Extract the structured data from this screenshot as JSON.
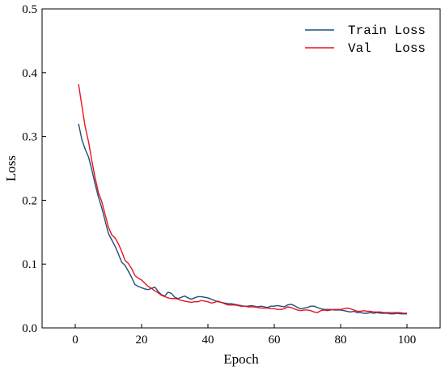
{
  "chart_data": {
    "type": "line",
    "xlabel": "Epoch",
    "ylabel": "Loss",
    "xlim": [
      -10,
      110
    ],
    "ylim": [
      0,
      0.5
    ],
    "xticks": [
      "0",
      "20",
      "40",
      "60",
      "80",
      "100"
    ],
    "yticks": [
      "0.0",
      "0.1",
      "0.2",
      "0.3",
      "0.4",
      "0.5"
    ],
    "grid": false,
    "legend_position": "top-right",
    "series": [
      {
        "name": "Train Loss",
        "color": "#1f4e79",
        "x": [
          1,
          2,
          3,
          4,
          5,
          6,
          7,
          8,
          9,
          10,
          11,
          12,
          13,
          14,
          15,
          16,
          17,
          18,
          19,
          20,
          21,
          22,
          23,
          24,
          25,
          26,
          27,
          28,
          29,
          30,
          31,
          32,
          33,
          34,
          35,
          36,
          37,
          38,
          39,
          40,
          41,
          42,
          43,
          44,
          45,
          46,
          47,
          48,
          49,
          50,
          51,
          52,
          53,
          54,
          55,
          56,
          57,
          58,
          59,
          60,
          61,
          62,
          63,
          64,
          65,
          66,
          67,
          68,
          69,
          70,
          71,
          72,
          73,
          74,
          75,
          76,
          77,
          78,
          79,
          80,
          81,
          82,
          83,
          84,
          85,
          86,
          87,
          88,
          89,
          90,
          91,
          92,
          93,
          94,
          95,
          96,
          97,
          98,
          99,
          100
        ],
        "y": [
          0.32,
          0.295,
          0.28,
          0.268,
          0.248,
          0.225,
          0.205,
          0.188,
          0.168,
          0.148,
          0.138,
          0.128,
          0.116,
          0.103,
          0.098,
          0.089,
          0.079,
          0.068,
          0.065,
          0.063,
          0.061,
          0.06,
          0.062,
          0.064,
          0.057,
          0.052,
          0.05,
          0.056,
          0.054,
          0.048,
          0.046,
          0.048,
          0.05,
          0.047,
          0.045,
          0.047,
          0.049,
          0.049,
          0.048,
          0.047,
          0.045,
          0.043,
          0.041,
          0.04,
          0.039,
          0.038,
          0.038,
          0.037,
          0.036,
          0.035,
          0.034,
          0.034,
          0.035,
          0.034,
          0.033,
          0.034,
          0.033,
          0.032,
          0.034,
          0.034,
          0.035,
          0.034,
          0.033,
          0.036,
          0.037,
          0.035,
          0.032,
          0.03,
          0.031,
          0.032,
          0.034,
          0.034,
          0.032,
          0.03,
          0.029,
          0.029,
          0.029,
          0.028,
          0.028,
          0.028,
          0.027,
          0.026,
          0.025,
          0.026,
          0.024,
          0.024,
          0.023,
          0.023,
          0.024,
          0.023,
          0.024,
          0.023,
          0.023,
          0.023,
          0.022,
          0.022,
          0.023,
          0.022,
          0.022,
          0.022
        ]
      },
      {
        "name": "Val   Loss",
        "color": "#e8141e",
        "x": [
          1,
          2,
          3,
          4,
          5,
          6,
          7,
          8,
          9,
          10,
          11,
          12,
          13,
          14,
          15,
          16,
          17,
          18,
          19,
          20,
          21,
          22,
          23,
          24,
          25,
          26,
          27,
          28,
          29,
          30,
          31,
          32,
          33,
          34,
          35,
          36,
          37,
          38,
          39,
          40,
          41,
          42,
          43,
          44,
          45,
          46,
          47,
          48,
          49,
          50,
          51,
          52,
          53,
          54,
          55,
          56,
          57,
          58,
          59,
          60,
          61,
          62,
          63,
          64,
          65,
          66,
          67,
          68,
          69,
          70,
          71,
          72,
          73,
          74,
          75,
          76,
          77,
          78,
          79,
          80,
          81,
          82,
          83,
          84,
          85,
          86,
          87,
          88,
          89,
          90,
          91,
          92,
          93,
          94,
          95,
          96,
          97,
          98,
          99,
          100
        ],
        "y": [
          0.382,
          0.348,
          0.315,
          0.292,
          0.262,
          0.235,
          0.212,
          0.198,
          0.178,
          0.158,
          0.146,
          0.141,
          0.132,
          0.12,
          0.106,
          0.101,
          0.093,
          0.082,
          0.078,
          0.075,
          0.07,
          0.065,
          0.062,
          0.058,
          0.055,
          0.051,
          0.049,
          0.047,
          0.046,
          0.046,
          0.045,
          0.043,
          0.042,
          0.041,
          0.04,
          0.041,
          0.041,
          0.043,
          0.042,
          0.041,
          0.039,
          0.04,
          0.042,
          0.04,
          0.038,
          0.036,
          0.036,
          0.036,
          0.035,
          0.034,
          0.034,
          0.033,
          0.033,
          0.033,
          0.032,
          0.031,
          0.031,
          0.031,
          0.03,
          0.03,
          0.029,
          0.029,
          0.03,
          0.033,
          0.032,
          0.03,
          0.028,
          0.027,
          0.028,
          0.028,
          0.027,
          0.025,
          0.024,
          0.027,
          0.028,
          0.027,
          0.028,
          0.029,
          0.029,
          0.029,
          0.03,
          0.031,
          0.03,
          0.028,
          0.026,
          0.026,
          0.027,
          0.026,
          0.026,
          0.025,
          0.025,
          0.025,
          0.024,
          0.024,
          0.024,
          0.024,
          0.024,
          0.024,
          0.023,
          0.023
        ]
      }
    ]
  }
}
